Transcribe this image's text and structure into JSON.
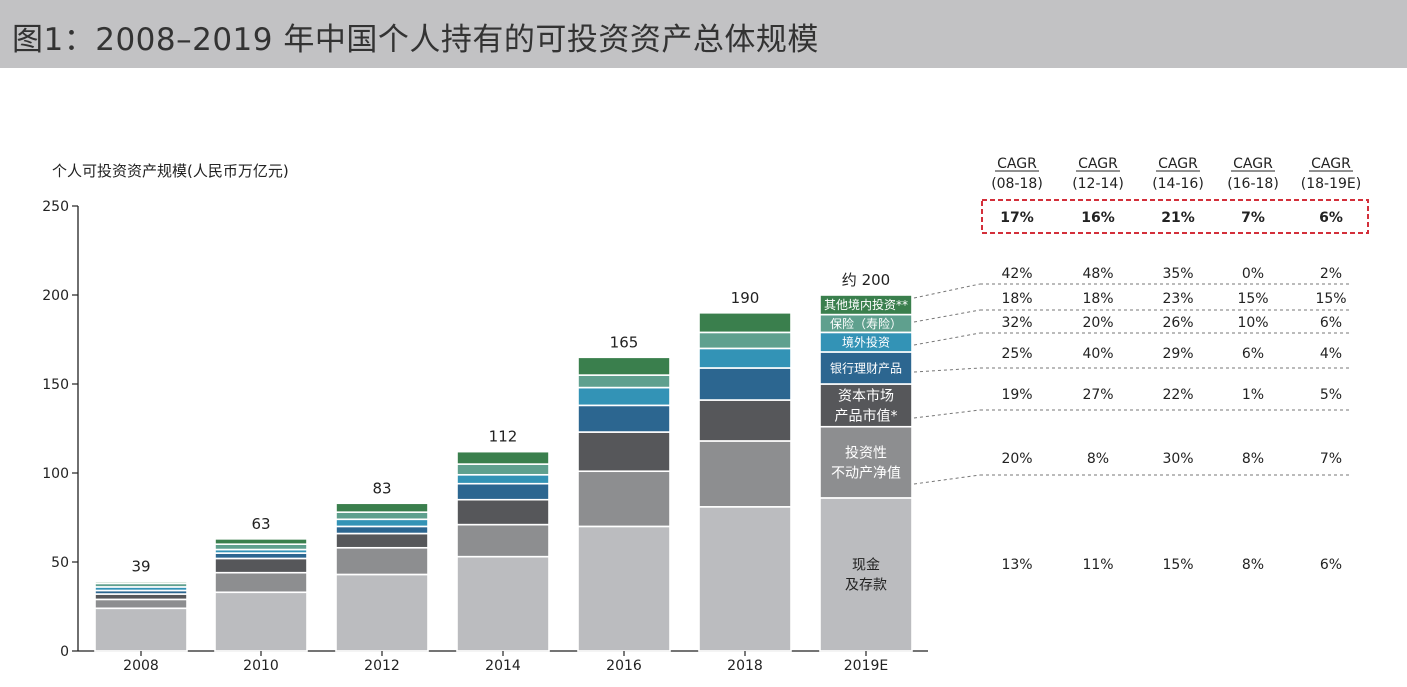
{
  "title": "图1：2008–2019 年中国个人持有的可投资资产总体规模",
  "colors": {
    "cash": "#bbbcbf",
    "real_estate": "#8d8e90",
    "capital_market": "#56575a",
    "bank_wm": "#2c6690",
    "overseas": "#3393b6",
    "insurance": "#5fa08e",
    "other": "#3a7f4d",
    "highlight_border": "#d32f3a",
    "title_bg": "#c2c2c4"
  },
  "chart_data": {
    "type": "bar",
    "stacked": true,
    "ylabel": "个人可投资资产规模(人民币万亿元)",
    "ylim": [
      0,
      250
    ],
    "yticks": [
      0,
      50,
      100,
      150,
      200,
      250
    ],
    "categories": [
      "2008",
      "2010",
      "2012",
      "2014",
      "2016",
      "2018",
      "2019E"
    ],
    "totals": [
      "39",
      "63",
      "83",
      "112",
      "165",
      "190",
      "约 200"
    ],
    "series": [
      {
        "key": "cash",
        "name": "现金\n及存款",
        "values": [
          24,
          33,
          43,
          53,
          70,
          81,
          86
        ]
      },
      {
        "key": "real_estate",
        "name": "投资性\n不动产净值",
        "values": [
          5,
          11,
          15,
          18,
          31,
          37,
          40
        ]
      },
      {
        "key": "capital_market",
        "name": "资本市场\n产品市值*",
        "values": [
          3,
          8,
          8,
          14,
          22,
          23,
          24
        ]
      },
      {
        "key": "bank_wm",
        "name": "银行理财产品",
        "values": [
          2,
          3,
          4,
          9,
          15,
          18,
          18
        ]
      },
      {
        "key": "overseas",
        "name": "境外投资",
        "values": [
          2,
          2,
          4,
          5,
          10,
          11,
          11
        ]
      },
      {
        "key": "insurance",
        "name": "保险（寿险）",
        "values": [
          2,
          3,
          4,
          6,
          7,
          9,
          10
        ]
      },
      {
        "key": "other",
        "name": "其他境内投资**",
        "values": [
          1,
          3,
          5,
          7,
          10,
          11,
          11
        ]
      }
    ],
    "cagr_headers": [
      [
        "CAGR",
        "(08-18)"
      ],
      [
        "CAGR",
        "(12-14)"
      ],
      [
        "CAGR",
        "(14-16)"
      ],
      [
        "CAGR",
        "(16-18)"
      ],
      [
        "CAGR",
        "(18-19E)"
      ]
    ],
    "cagr_total": [
      "17%",
      "16%",
      "21%",
      "7%",
      "6%"
    ],
    "cagr_rows": [
      {
        "key": "other",
        "values": [
          "42%",
          "48%",
          "35%",
          "0%",
          "2%"
        ]
      },
      {
        "key": "insurance",
        "values": [
          "18%",
          "18%",
          "23%",
          "15%",
          "15%"
        ]
      },
      {
        "key": "overseas",
        "values": [
          "32%",
          "20%",
          "26%",
          "10%",
          "6%"
        ]
      },
      {
        "key": "bank_wm",
        "values": [
          "25%",
          "40%",
          "29%",
          "6%",
          "4%"
        ]
      },
      {
        "key": "capital_market",
        "values": [
          "19%",
          "27%",
          "22%",
          "1%",
          "5%"
        ]
      },
      {
        "key": "real_estate",
        "values": [
          "20%",
          "8%",
          "30%",
          "8%",
          "7%"
        ]
      },
      {
        "key": "cash",
        "values": [
          "13%",
          "11%",
          "15%",
          "8%",
          "6%"
        ]
      }
    ]
  }
}
